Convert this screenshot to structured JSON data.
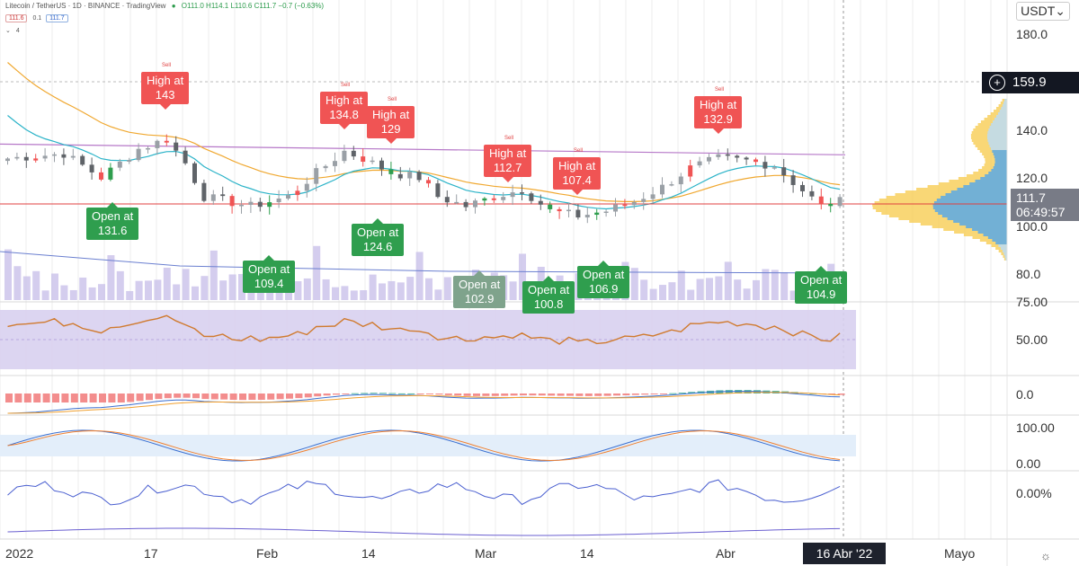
{
  "header": {
    "symbol": "Litecoin / TetherUS · 1D · BINANCE · TradingView",
    "ohlc": "O111.0 H114.1 L110.6 C111.7 −0.7 (−0.63%)",
    "pill1": "111.6",
    "pill_mid": "0.1",
    "pill2": "111.7",
    "count": "4"
  },
  "currency": "USDT",
  "last_price": "111.7",
  "countdown": "06:49:57",
  "crosshair_price": "159.9",
  "crosshair_date": "16 Abr '22",
  "colors": {
    "up": "#2f9e4e",
    "down": "#f05454",
    "volume": "#c9c1ea",
    "ema_fast": "#2bb3c8",
    "ema_slow": "#f0a830",
    "ma_long": "#b678c8",
    "rsi_bg": "#d8d0f0",
    "rsi_line": "#d07a2e"
  },
  "chart_data": {
    "type": "candlestick",
    "y_axis_ticks": [
      "180.0",
      "140.0",
      "120.0",
      "100.0",
      "80.0",
      "75.00"
    ],
    "x_axis_ticks": [
      "2022",
      "17",
      "Feb",
      "14",
      "Mar",
      "14",
      "Abr",
      "Mayo"
    ],
    "ylim": [
      75,
      185
    ],
    "labels": [
      {
        "kind": "high",
        "text": "High at\n143",
        "value": 143,
        "x": 185,
        "sell": "Sell"
      },
      {
        "kind": "high",
        "text": "High at\n134.8",
        "value": 134.8,
        "x": 384,
        "sell": "Sell"
      },
      {
        "kind": "high",
        "text": "High at\n129",
        "value": 129,
        "x": 436,
        "sell": "Sell"
      },
      {
        "kind": "high",
        "text": "High at\n112.7",
        "value": 112.7,
        "x": 566,
        "sell": "Sell"
      },
      {
        "kind": "high",
        "text": "High at\n107.4",
        "value": 107.4,
        "x": 643,
        "sell": "Sell"
      },
      {
        "kind": "high",
        "text": "High at\n132.9",
        "value": 132.9,
        "x": 800,
        "sell": "Sell"
      },
      {
        "kind": "open",
        "text": "Open at\n131.6",
        "value": 131.6,
        "x": 124
      },
      {
        "kind": "open",
        "text": "Open at\n109.4",
        "value": 109.4,
        "x": 298
      },
      {
        "kind": "open",
        "text": "Open at\n124.6",
        "value": 124.6,
        "x": 419
      },
      {
        "kind": "open-gray",
        "text": "Open at\n102.9",
        "value": 102.9,
        "x": 532
      },
      {
        "kind": "open",
        "text": "Open at\n100.8",
        "value": 100.8,
        "x": 609
      },
      {
        "kind": "open",
        "text": "Open at\n106.9",
        "value": 106.9,
        "x": 670
      },
      {
        "kind": "open",
        "text": "Open at\n104.9",
        "value": 104.9,
        "x": 912
      }
    ],
    "horizontal_level": 111.7,
    "rsi_ticks": [
      "50.00"
    ],
    "macd_ticks": [
      "0.0"
    ],
    "stoch_ticks": [
      "100.00",
      "0.00"
    ],
    "pct_ticks": [
      "0.00%"
    ]
  }
}
